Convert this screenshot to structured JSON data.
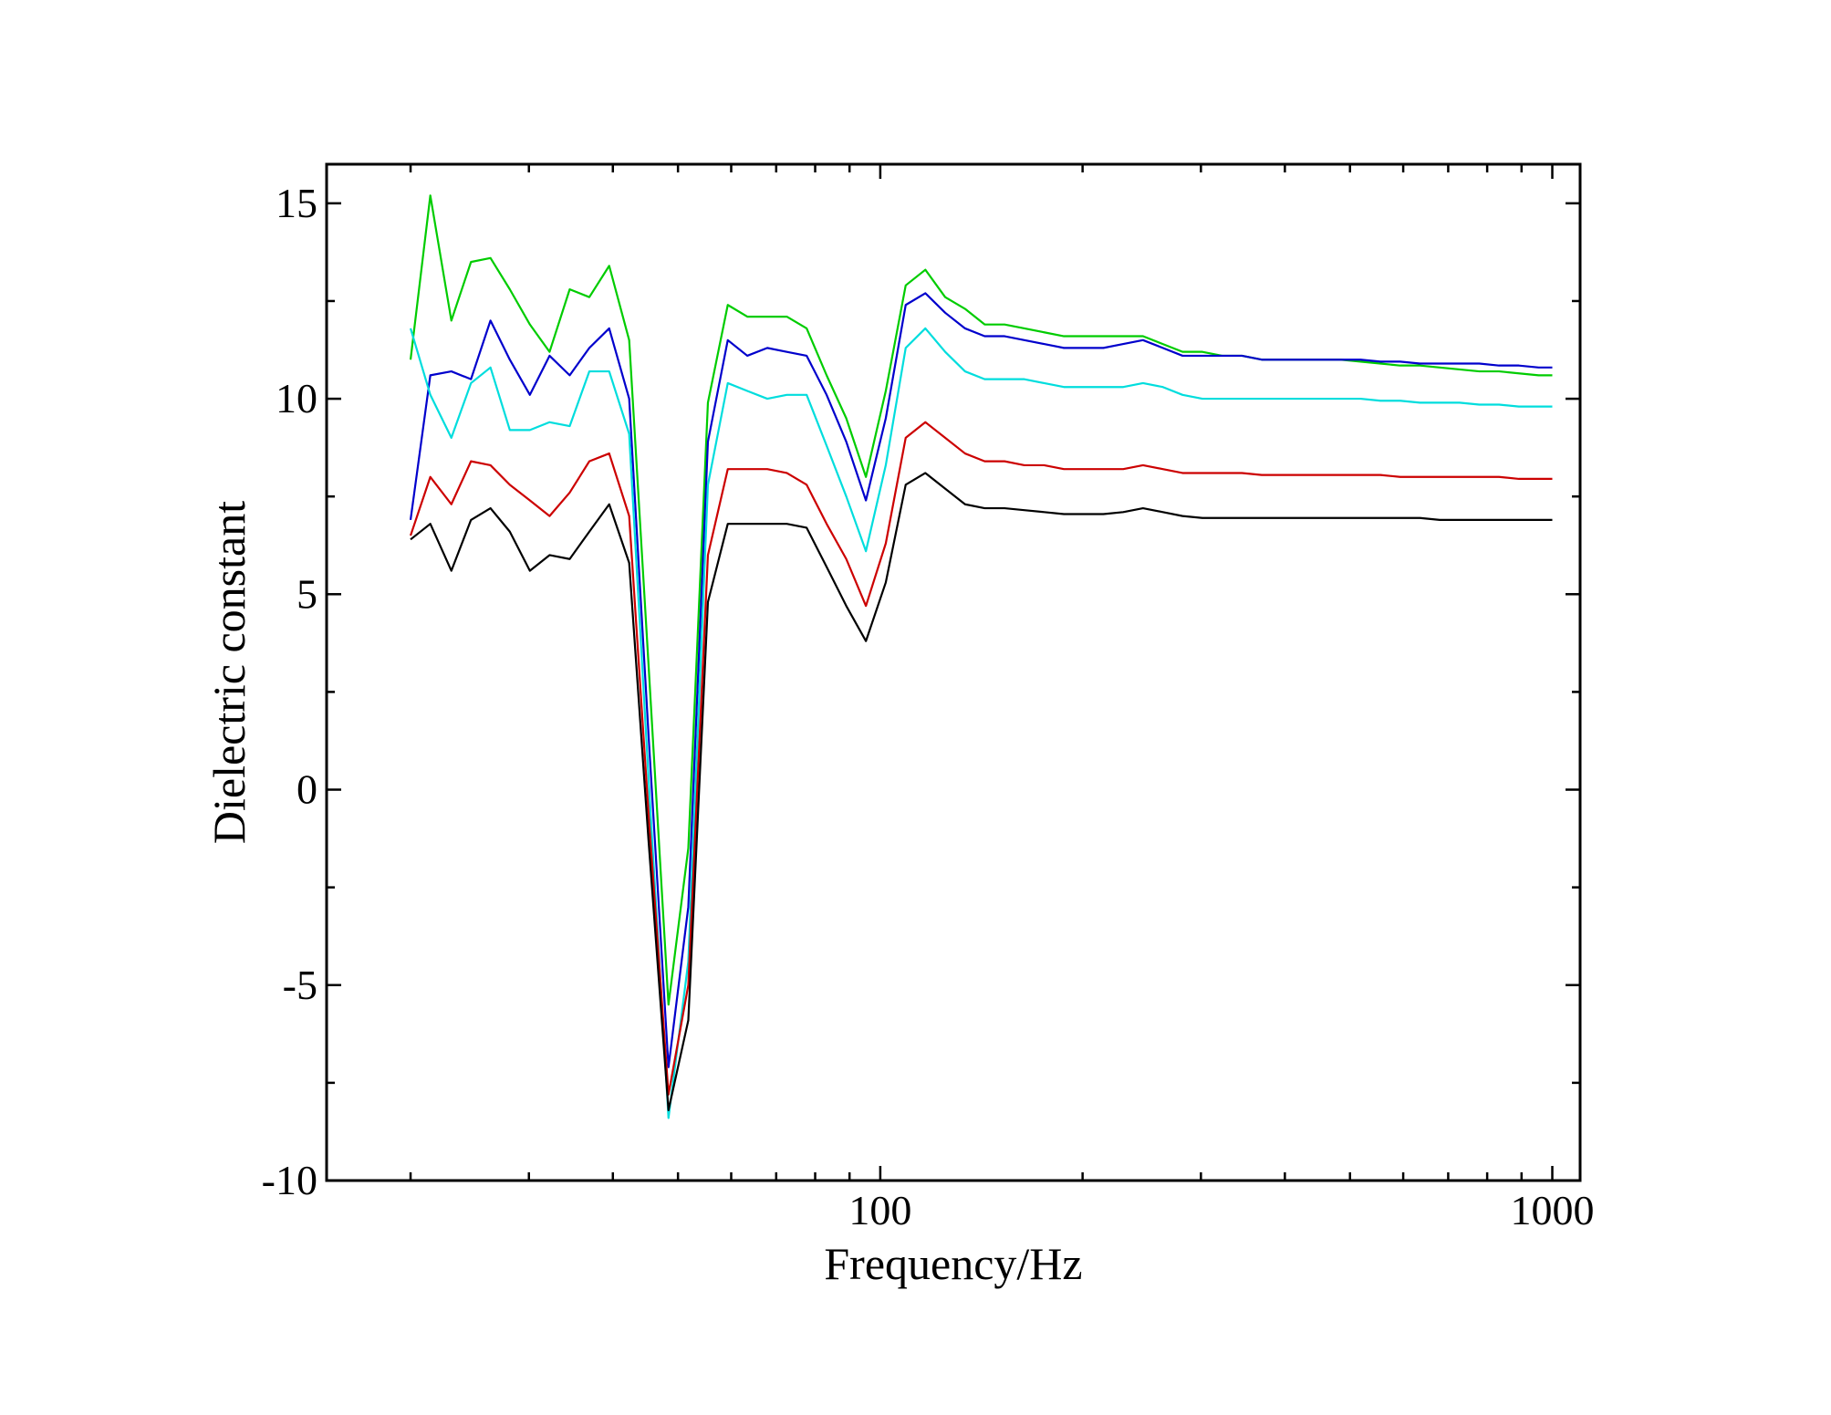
{
  "chart_data": {
    "type": "line",
    "title": "",
    "xlabel": "Frequency/Hz",
    "ylabel": "Dielectric constant",
    "xscale": "log",
    "xlim": [
      15,
      1100
    ],
    "ylim": [
      -10,
      16
    ],
    "xticks": [
      100,
      1000
    ],
    "xtick_labels": [
      "100",
      "1000"
    ],
    "yticks": [
      -10,
      -5,
      0,
      5,
      10,
      15
    ],
    "ytick_labels": [
      "-10",
      "-5",
      "0",
      "5",
      "10",
      "15"
    ],
    "grid": false,
    "legend": "none",
    "x": [
      20,
      21.4,
      23,
      24.6,
      26.3,
      28.1,
      30.1,
      32.2,
      34.5,
      36.9,
      39.5,
      42.3,
      45.2,
      48.4,
      51.8,
      55.4,
      59.3,
      63.4,
      67.9,
      72.6,
      77.7,
      83.2,
      89,
      95.2,
      101.9,
      109.1,
      116.7,
      124.9,
      133.7,
      143,
      153.1,
      163.8,
      175.3,
      187.6,
      200.7,
      214.8,
      229.9,
      246,
      263.3,
      281.7,
      301.5,
      322.6,
      345.3,
      369.5,
      395.4,
      423.1,
      452.8,
      484.5,
      518.5,
      554.9,
      593.8,
      635.4,
      680,
      727.7,
      778.7,
      833.3,
      891.8,
      954.3,
      1000
    ],
    "series": [
      {
        "color": "#00cc00",
        "values": [
          11.0,
          15.2,
          12.0,
          13.5,
          13.6,
          12.8,
          11.9,
          11.2,
          12.8,
          12.6,
          13.4,
          11.5,
          3.2,
          -5.5,
          -1.5,
          9.9,
          12.4,
          12.1,
          12.1,
          12.1,
          11.8,
          10.6,
          9.5,
          8.0,
          10.2,
          12.9,
          13.3,
          12.6,
          12.3,
          11.9,
          11.9,
          11.8,
          11.7,
          11.6,
          11.6,
          11.6,
          11.6,
          11.6,
          11.4,
          11.2,
          11.2,
          11.1,
          11.1,
          11.0,
          11.0,
          11.0,
          11.0,
          11.0,
          10.95,
          10.9,
          10.85,
          10.85,
          10.8,
          10.75,
          10.7,
          10.7,
          10.65,
          10.6,
          10.6
        ]
      },
      {
        "color": "#0000cc",
        "values": [
          6.9,
          10.6,
          10.7,
          10.5,
          12.0,
          11.0,
          10.1,
          11.1,
          10.6,
          11.3,
          11.8,
          10.0,
          1.4,
          -7.1,
          -3.0,
          8.9,
          11.5,
          11.1,
          11.3,
          11.2,
          11.1,
          10.1,
          8.9,
          7.4,
          9.5,
          12.4,
          12.7,
          12.2,
          11.8,
          11.6,
          11.6,
          11.5,
          11.4,
          11.3,
          11.3,
          11.3,
          11.4,
          11.5,
          11.3,
          11.1,
          11.1,
          11.1,
          11.1,
          11.0,
          11.0,
          11.0,
          11.0,
          11.0,
          11.0,
          10.95,
          10.95,
          10.9,
          10.9,
          10.9,
          10.9,
          10.85,
          10.85,
          10.8,
          10.8
        ]
      },
      {
        "color": "#00dddd",
        "values": [
          11.8,
          10.1,
          9.0,
          10.4,
          10.8,
          9.2,
          9.2,
          9.4,
          9.3,
          10.7,
          10.7,
          9.1,
          0.3,
          -8.4,
          -4.4,
          7.8,
          10.4,
          10.2,
          10.0,
          10.1,
          10.1,
          8.8,
          7.5,
          6.1,
          8.3,
          11.3,
          11.8,
          11.2,
          10.7,
          10.5,
          10.5,
          10.5,
          10.4,
          10.3,
          10.3,
          10.3,
          10.3,
          10.4,
          10.3,
          10.1,
          10.0,
          10.0,
          10.0,
          10.0,
          10.0,
          10.0,
          10.0,
          10.0,
          10.0,
          9.95,
          9.95,
          9.9,
          9.9,
          9.9,
          9.85,
          9.85,
          9.8,
          9.8,
          9.8
        ]
      },
      {
        "color": "#cc0000",
        "values": [
          6.5,
          8.0,
          7.3,
          8.4,
          8.3,
          7.8,
          7.4,
          7.0,
          7.6,
          8.4,
          8.6,
          7.0,
          -0.6,
          -7.8,
          -5.0,
          6.0,
          8.2,
          8.2,
          8.2,
          8.1,
          7.8,
          6.8,
          5.9,
          4.7,
          6.3,
          9.0,
          9.4,
          9.0,
          8.6,
          8.4,
          8.4,
          8.3,
          8.3,
          8.2,
          8.2,
          8.2,
          8.2,
          8.3,
          8.2,
          8.1,
          8.1,
          8.1,
          8.1,
          8.05,
          8.05,
          8.05,
          8.05,
          8.05,
          8.05,
          8.05,
          8.0,
          8.0,
          8.0,
          8.0,
          8.0,
          8.0,
          7.95,
          7.95,
          7.95
        ]
      },
      {
        "color": "#000000",
        "values": [
          6.4,
          6.8,
          5.6,
          6.9,
          7.2,
          6.6,
          5.6,
          6.0,
          5.9,
          6.6,
          7.3,
          5.8,
          -1.3,
          -8.2,
          -5.9,
          4.8,
          6.8,
          6.8,
          6.8,
          6.8,
          6.7,
          5.7,
          4.7,
          3.8,
          5.3,
          7.8,
          8.1,
          7.7,
          7.3,
          7.2,
          7.2,
          7.15,
          7.1,
          7.05,
          7.05,
          7.05,
          7.1,
          7.2,
          7.1,
          7.0,
          6.95,
          6.95,
          6.95,
          6.95,
          6.95,
          6.95,
          6.95,
          6.95,
          6.95,
          6.95,
          6.95,
          6.95,
          6.9,
          6.9,
          6.9,
          6.9,
          6.9,
          6.9,
          6.9
        ]
      }
    ]
  }
}
